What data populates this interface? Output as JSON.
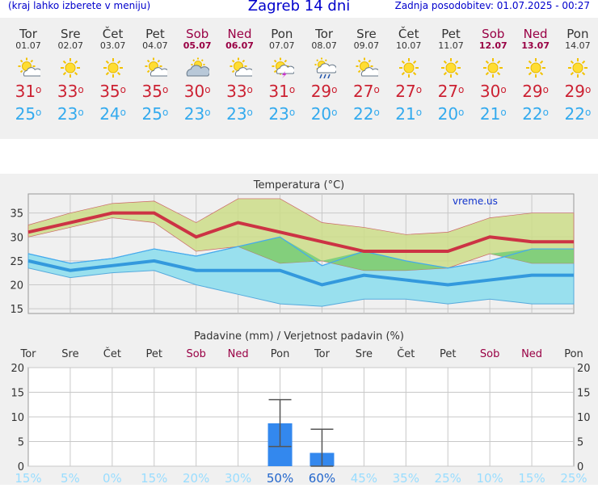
{
  "header": {
    "menu_hint": "(kraj lahko izberete v meniju)",
    "title": "Zagreb 14 dni",
    "updated": "Zadnja posodobitev: 01.07.2025 - 00:27"
  },
  "days": [
    {
      "name": "Tor",
      "date": "01.07",
      "icon": "sun-cloud-icon",
      "max": "31",
      "min": "25",
      "weekend": false
    },
    {
      "name": "Sre",
      "date": "02.07",
      "icon": "sun-icon",
      "max": "33",
      "min": "23",
      "weekend": false
    },
    {
      "name": "Čet",
      "date": "03.07",
      "icon": "sun-icon",
      "max": "35",
      "min": "24",
      "weekend": false
    },
    {
      "name": "Pet",
      "date": "04.07",
      "icon": "sun-cloud-icon",
      "max": "35",
      "min": "25",
      "weekend": false
    },
    {
      "name": "Sob",
      "date": "05.07",
      "icon": "cloud-sun-icon",
      "max": "30",
      "min": "23",
      "weekend": true
    },
    {
      "name": "Ned",
      "date": "06.07",
      "icon": "sun-cloud-icon",
      "max": "33",
      "min": "23",
      "weekend": true
    },
    {
      "name": "Pon",
      "date": "07.07",
      "icon": "thunder-icon",
      "max": "31",
      "min": "23",
      "weekend": false
    },
    {
      "name": "Tor",
      "date": "08.07",
      "icon": "rain-icon",
      "max": "29",
      "min": "20",
      "weekend": false
    },
    {
      "name": "Sre",
      "date": "09.07",
      "icon": "sun-cloud-icon",
      "max": "27",
      "min": "22",
      "weekend": false
    },
    {
      "name": "Čet",
      "date": "10.07",
      "icon": "sun-icon",
      "max": "27",
      "min": "21",
      "weekend": false
    },
    {
      "name": "Pet",
      "date": "11.07",
      "icon": "sun-icon",
      "max": "27",
      "min": "20",
      "weekend": false
    },
    {
      "name": "Sob",
      "date": "12.07",
      "icon": "sun-icon",
      "max": "30",
      "min": "21",
      "weekend": true
    },
    {
      "name": "Ned",
      "date": "13.07",
      "icon": "sun-icon",
      "max": "29",
      "min": "22",
      "weekend": true
    },
    {
      "name": "Pon",
      "date": "14.07",
      "icon": "sun-icon",
      "max": "29",
      "min": "22",
      "weekend": false
    }
  ],
  "degree_symbol": "o",
  "chart_data": [
    {
      "type": "line",
      "title": "Temperatura (°C)",
      "watermark": "vreme.us",
      "ylim": [
        14,
        39
      ],
      "yticks": [
        "15",
        "20",
        "25",
        "30",
        "35"
      ],
      "series": [
        {
          "values": [
            31,
            33,
            35,
            35,
            30,
            33,
            31,
            29,
            27,
            27,
            27,
            30,
            29,
            29
          ]
        },
        {
          "values": [
            25,
            23,
            24,
            25,
            23,
            23,
            23,
            20,
            22,
            21,
            20,
            21,
            22,
            22
          ]
        }
      ],
      "max_band_low": [
        30,
        32,
        34,
        33,
        27,
        28,
        24.5,
        25,
        23,
        23,
        23.5,
        26.5,
        24.5,
        24.5
      ],
      "max_band_high": [
        32.5,
        35,
        37,
        37.5,
        33,
        38,
        38,
        33,
        32,
        30.5,
        31,
        34,
        35,
        35
      ],
      "min_band_low": [
        23.5,
        21.5,
        22.5,
        23,
        20,
        18,
        16,
        15.5,
        17,
        17,
        16,
        17,
        16,
        16
      ],
      "min_band_high": [
        26.5,
        24.5,
        25.5,
        27.5,
        26,
        28,
        30,
        24,
        27,
        25,
        23.5,
        25,
        27.5,
        27.5
      ],
      "colors": {
        "max": "#cc3344",
        "min": "#3399dd",
        "max_band": "#ccdd88",
        "min_band": "#99e0ee",
        "overlap": "#77cc77"
      }
    },
    {
      "type": "bar",
      "title": "Padavine (mm) / Verjetnost padavin (%)",
      "categories": [
        "Tor",
        "Sre",
        "Čet",
        "Pet",
        "Sob",
        "Ned",
        "Pon",
        "Tor",
        "Sre",
        "Čet",
        "Pet",
        "Sob",
        "Ned",
        "Pon"
      ],
      "values": [
        0,
        0,
        0,
        0,
        0,
        0,
        8.7,
        2.7,
        0,
        0,
        0,
        0,
        0,
        0
      ],
      "error_low": [
        0,
        0,
        0,
        0,
        0,
        0,
        4,
        0,
        0,
        0,
        0,
        0,
        0,
        0
      ],
      "error_high": [
        0,
        0,
        0,
        0,
        0,
        0,
        13.5,
        7.5,
        0,
        0,
        0,
        0,
        0,
        0
      ],
      "probability": [
        "15%",
        "5%",
        "0%",
        "15%",
        "20%",
        "30%",
        "50%",
        "60%",
        "45%",
        "35%",
        "25%",
        "10%",
        "15%",
        "25%"
      ],
      "ylim": [
        0,
        20
      ],
      "yticks": [
        "0",
        "5",
        "10",
        "15",
        "20"
      ],
      "colors": {
        "bar": "#3388ee",
        "prob_low": "#99ddff",
        "prob_high": "#2266cc"
      }
    }
  ]
}
